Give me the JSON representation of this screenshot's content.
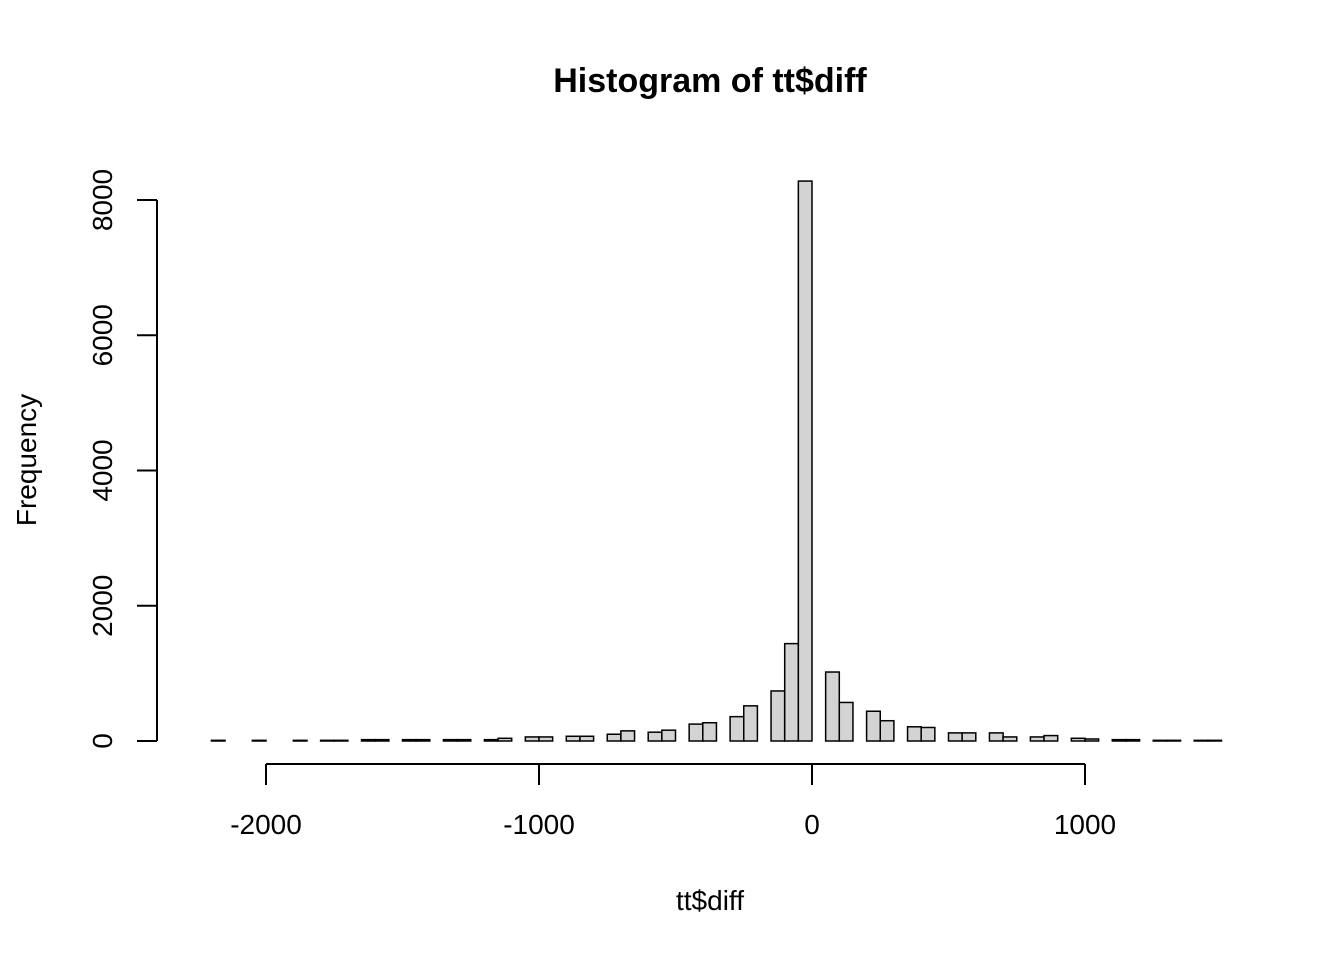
{
  "chart_data": {
    "type": "bar",
    "title": "Histogram of tt$diff",
    "xlabel": "tt$diff",
    "ylabel": "Frequency",
    "bin_width": 50,
    "xlim": [
      -2250,
      1500
    ],
    "ylim": [
      0,
      8300
    ],
    "x_ticks": [
      -2000,
      -1000,
      0,
      1000
    ],
    "y_ticks": [
      0,
      2000,
      4000,
      6000,
      8000
    ],
    "fill_color": "#d3d3d3",
    "stroke_color": "#000000",
    "bins": [
      {
        "x0": -2200,
        "x1": -2150,
        "count": 10
      },
      {
        "x0": -2050,
        "x1": -2000,
        "count": 10
      },
      {
        "x0": -1900,
        "x1": -1850,
        "count": 10
      },
      {
        "x0": -1800,
        "x1": -1750,
        "count": 10
      },
      {
        "x0": -1750,
        "x1": -1700,
        "count": 10
      },
      {
        "x0": -1650,
        "x1": -1600,
        "count": 20
      },
      {
        "x0": -1600,
        "x1": -1550,
        "count": 20
      },
      {
        "x0": -1500,
        "x1": -1450,
        "count": 20
      },
      {
        "x0": -1450,
        "x1": -1400,
        "count": 20
      },
      {
        "x0": -1350,
        "x1": -1300,
        "count": 20
      },
      {
        "x0": -1300,
        "x1": -1250,
        "count": 20
      },
      {
        "x0": -1200,
        "x1": -1150,
        "count": 20
      },
      {
        "x0": -1150,
        "x1": -1100,
        "count": 40
      },
      {
        "x0": -1050,
        "x1": -1000,
        "count": 60
      },
      {
        "x0": -1000,
        "x1": -950,
        "count": 60
      },
      {
        "x0": -900,
        "x1": -850,
        "count": 70
      },
      {
        "x0": -850,
        "x1": -800,
        "count": 70
      },
      {
        "x0": -750,
        "x1": -700,
        "count": 100
      },
      {
        "x0": -700,
        "x1": -650,
        "count": 150
      },
      {
        "x0": -600,
        "x1": -550,
        "count": 130
      },
      {
        "x0": -550,
        "x1": -500,
        "count": 160
      },
      {
        "x0": -450,
        "x1": -400,
        "count": 250
      },
      {
        "x0": -400,
        "x1": -350,
        "count": 270
      },
      {
        "x0": -300,
        "x1": -250,
        "count": 360
      },
      {
        "x0": -250,
        "x1": -200,
        "count": 520
      },
      {
        "x0": -150,
        "x1": -100,
        "count": 740
      },
      {
        "x0": -100,
        "x1": -50,
        "count": 1440
      },
      {
        "x0": -50,
        "x1": 0,
        "count": 8280
      },
      {
        "x0": 50,
        "x1": 100,
        "count": 1020
      },
      {
        "x0": 100,
        "x1": 150,
        "count": 570
      },
      {
        "x0": 200,
        "x1": 250,
        "count": 440
      },
      {
        "x0": 250,
        "x1": 300,
        "count": 300
      },
      {
        "x0": 350,
        "x1": 400,
        "count": 210
      },
      {
        "x0": 400,
        "x1": 450,
        "count": 200
      },
      {
        "x0": 500,
        "x1": 550,
        "count": 120
      },
      {
        "x0": 550,
        "x1": 600,
        "count": 120
      },
      {
        "x0": 650,
        "x1": 700,
        "count": 120
      },
      {
        "x0": 700,
        "x1": 750,
        "count": 60
      },
      {
        "x0": 800,
        "x1": 850,
        "count": 60
      },
      {
        "x0": 850,
        "x1": 900,
        "count": 80
      },
      {
        "x0": 950,
        "x1": 1000,
        "count": 40
      },
      {
        "x0": 1000,
        "x1": 1050,
        "count": 30
      },
      {
        "x0": 1100,
        "x1": 1150,
        "count": 20
      },
      {
        "x0": 1150,
        "x1": 1200,
        "count": 20
      },
      {
        "x0": 1250,
        "x1": 1300,
        "count": 10
      },
      {
        "x0": 1300,
        "x1": 1350,
        "count": 10
      },
      {
        "x0": 1400,
        "x1": 1450,
        "count": 10
      },
      {
        "x0": 1450,
        "x1": 1500,
        "count": 10
      }
    ]
  }
}
